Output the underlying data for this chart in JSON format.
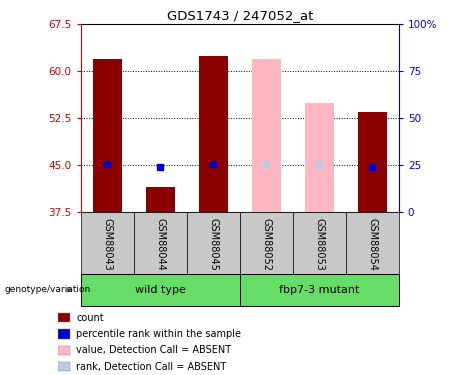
{
  "title": "GDS1743 / 247052_at",
  "samples": [
    "GSM88043",
    "GSM88044",
    "GSM88045",
    "GSM88052",
    "GSM88053",
    "GSM88054"
  ],
  "ylim_left": [
    37.5,
    67.5
  ],
  "ylim_right": [
    0,
    100
  ],
  "yticks_left": [
    37.5,
    45.0,
    52.5,
    60.0,
    67.5
  ],
  "yticks_right": [
    0,
    25,
    50,
    75,
    100
  ],
  "bar_data": {
    "GSM88043": {
      "value": 62.0,
      "rank": 25.5,
      "absent_value": null,
      "absent_rank": null,
      "absent": false
    },
    "GSM88044": {
      "value": 41.5,
      "rank": 24.0,
      "absent_value": null,
      "absent_rank": null,
      "absent": false
    },
    "GSM88045": {
      "value": 62.5,
      "rank": 25.5,
      "absent_value": null,
      "absent_rank": null,
      "absent": false
    },
    "GSM88052": {
      "value": null,
      "rank": null,
      "absent_value": 62.0,
      "absent_rank": 25.5,
      "absent": true
    },
    "GSM88053": {
      "value": null,
      "rank": null,
      "absent_value": 55.0,
      "absent_rank": 25.5,
      "absent": true
    },
    "GSM88054": {
      "value": 53.5,
      "rank": 24.0,
      "absent_value": null,
      "absent_rank": null,
      "absent": false
    }
  },
  "bar_bottom": 37.5,
  "colors": {
    "dark_red": "#8B0000",
    "blue": "#0000CC",
    "light_pink": "#FFB6C1",
    "light_blue": "#B8CCE4",
    "axis_left_color": "#CC0000",
    "axis_right_color": "#0000CC",
    "bg_sample": "#C8C8C8",
    "bg_group": "#66DD66"
  },
  "legend_labels": [
    "count",
    "percentile rank within the sample",
    "value, Detection Call = ABSENT",
    "rank, Detection Call = ABSENT"
  ],
  "legend_colors": [
    "#8B0000",
    "#0000CC",
    "#FFB6C1",
    "#B8CCE4"
  ]
}
